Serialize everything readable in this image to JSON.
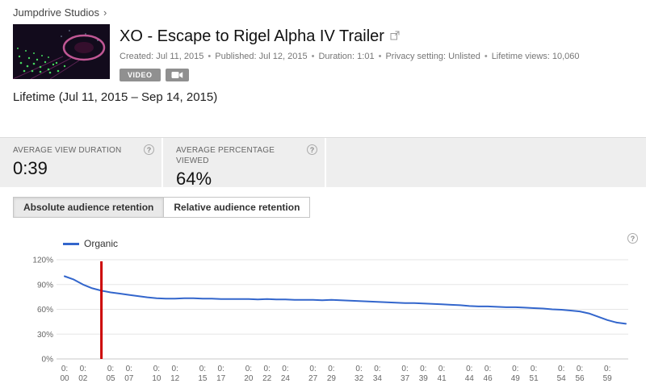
{
  "header": {
    "breadcrumb": "Jumpdrive Studios",
    "breadcrumb_chevron": "›",
    "title": "XO - Escape to Rigel Alpha IV Trailer",
    "metadata": [
      "Created: Jul 11, 2015",
      "Published: Jul 12, 2015",
      "Duration: 1:01",
      "Privacy setting: Unlisted",
      "Lifetime views: 10,060"
    ],
    "metadata_separator": "•",
    "badges": {
      "video": "VIDEO"
    },
    "date_range": "Lifetime (Jul 11, 2015 – Sep 14, 2015)"
  },
  "stats": [
    {
      "label": "AVERAGE VIEW DURATION",
      "value": "0:39"
    },
    {
      "label": "AVERAGE PERCENTAGE VIEWED",
      "value": "64%"
    }
  ],
  "tabs": [
    {
      "label": "Absolute audience retention",
      "selected": true
    },
    {
      "label": "Relative audience retention",
      "selected": false
    }
  ],
  "icons": {
    "help": "?"
  },
  "colors": {
    "accent_blue": "#3366cc",
    "marker_red": "#cc0000",
    "stats_bg": "#eeeeee"
  },
  "chart_data": {
    "type": "line",
    "title": "Absolute audience retention",
    "xlabel": "",
    "ylabel": "",
    "x_unit": "seconds",
    "xlim": [
      0,
      61
    ],
    "ylim": [
      0,
      120
    ],
    "grid": true,
    "legend_position": "top-left",
    "ytick_values": [
      0,
      30,
      60,
      90,
      120
    ],
    "ytick_labels": [
      "0%",
      "30%",
      "60%",
      "90%",
      "120%"
    ],
    "xtick_prefix": "0:",
    "xtick_seconds": [
      0,
      2,
      5,
      7,
      10,
      12,
      15,
      17,
      20,
      22,
      24,
      27,
      29,
      32,
      34,
      37,
      39,
      41,
      44,
      46,
      49,
      51,
      54,
      56,
      59
    ],
    "xtick_labels": [
      "00",
      "02",
      "05",
      "07",
      "10",
      "12",
      "15",
      "17",
      "20",
      "22",
      "24",
      "27",
      "29",
      "32",
      "34",
      "37",
      "39",
      "41",
      "44",
      "46",
      "49",
      "51",
      "54",
      "56",
      "59"
    ],
    "marker": {
      "type": "vline",
      "x_seconds": 4,
      "color": "#cc0000"
    },
    "x": [
      0,
      1,
      2,
      3,
      4,
      5,
      6,
      7,
      8,
      9,
      10,
      11,
      12,
      13,
      14,
      15,
      16,
      17,
      18,
      19,
      20,
      21,
      22,
      23,
      24,
      25,
      26,
      27,
      28,
      29,
      30,
      31,
      32,
      33,
      34,
      35,
      36,
      37,
      38,
      39,
      40,
      41,
      42,
      43,
      44,
      45,
      46,
      47,
      48,
      49,
      50,
      51,
      52,
      53,
      54,
      55,
      56,
      57,
      58,
      59,
      60,
      61
    ],
    "series": [
      {
        "name": "Organic",
        "color": "#3366cc",
        "values": [
          100,
          96,
          90,
          85.5,
          82.5,
          80.5,
          79,
          77.5,
          76,
          74.5,
          73.5,
          73,
          73,
          73.5,
          73.5,
          73,
          73,
          72.5,
          72.5,
          72.5,
          72.5,
          72,
          72.5,
          72,
          72,
          71.5,
          71.5,
          71.5,
          71,
          71.5,
          71,
          70.5,
          70,
          69.5,
          69,
          68.5,
          68,
          67.5,
          67.5,
          67,
          66.5,
          66,
          65.5,
          65,
          64,
          63.5,
          63.5,
          63,
          62.5,
          62.5,
          62,
          61.5,
          61,
          60,
          59.5,
          58.5,
          57.5,
          55,
          51,
          47,
          44,
          42.5
        ]
      }
    ]
  }
}
